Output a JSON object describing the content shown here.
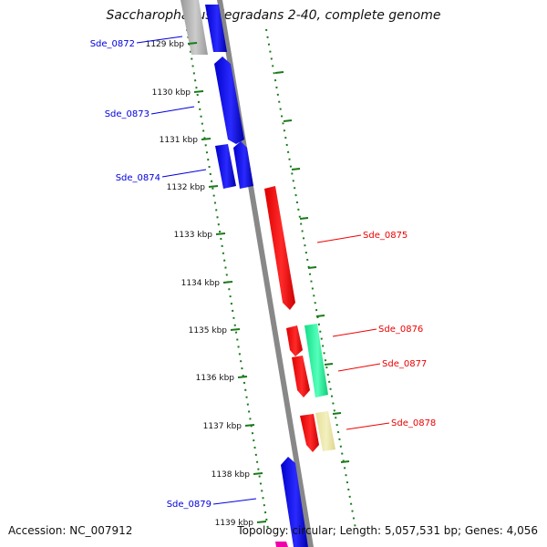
{
  "title": "Saccharophagus degradans 2-40, complete genome",
  "footer": {
    "accession": "Accession: NC_007912",
    "summary": "Topology: circular; Length: 5,057,531 bp; Genes: 4,056"
  },
  "ticks": [
    "1129 kbp",
    "1130 kbp",
    "1131 kbp",
    "1132 kbp",
    "1133 kbp",
    "1134 kbp",
    "1135 kbp",
    "1136 kbp",
    "1137 kbp",
    "1138 kbp",
    "1139 kbp"
  ],
  "genes": [
    {
      "label": "Sde_0872",
      "color": "#0000dd"
    },
    {
      "label": "Sde_0873",
      "color": "#0000dd"
    },
    {
      "label": "Sde_0874",
      "color": "#0000dd"
    },
    {
      "label": "Sde_0875",
      "color": "#ee0000"
    },
    {
      "label": "Sde_0876",
      "color": "#ee0000"
    },
    {
      "label": "Sde_0877",
      "color": "#ee0000"
    },
    {
      "label": "Sde_0878",
      "color": "#ee0000"
    },
    {
      "label": "Sde_0879",
      "color": "#0000dd"
    }
  ],
  "colors": {
    "forward_strand": "#0000dd",
    "reverse_strand": "#ee0000",
    "backbone": "#888888",
    "dotted_guides": "#1a7a1a",
    "accent_green": "#22ee99",
    "accent_yellow": "#eeeeaa",
    "accent_gray": "#aaaaaa",
    "accent_magenta": "#ee00aa"
  }
}
